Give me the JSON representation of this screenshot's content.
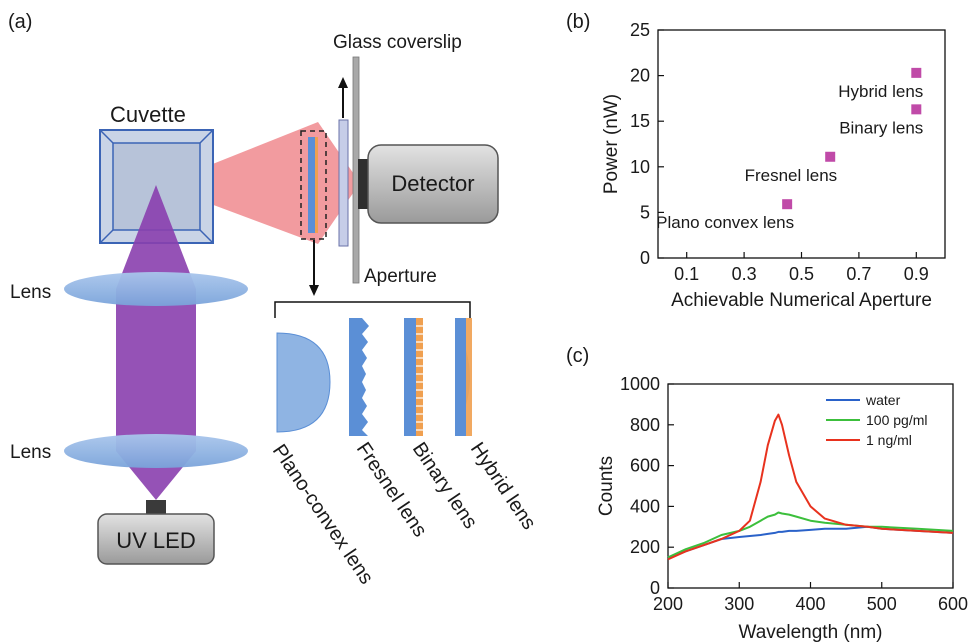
{
  "panels": {
    "a": "(a)",
    "b": "(b)",
    "c": "(c)"
  },
  "diagram": {
    "cuvette": "Cuvette",
    "glass_coverslip": "Glass coverslip",
    "detector": "Detector",
    "aperture": "Aperture",
    "lens_top": "Lens",
    "lens_bottom": "Lens",
    "uv_led": "UV LED",
    "lens_types": [
      "Plano-convex lens",
      "Fresnel lens",
      "Binary lens",
      "Hybrid lens"
    ]
  },
  "colors": {
    "beam_uv": "#8a3fae",
    "beam_red": "#f08a8e",
    "lens_fill": "#8fb4e3",
    "lens_blue": "#5b8fd6",
    "grating_orange": "#f0a050",
    "box_gray": "#b9b9b9",
    "marker_magenta": "#c04aa8"
  },
  "chart_data": [
    {
      "type": "scatter",
      "xlabel": "Achievable Numerical Aperture",
      "ylabel": "Power (nW)",
      "xlim": [
        0,
        1.0
      ],
      "ylim": [
        0,
        25
      ],
      "xticks": [
        "0.1",
        "0.3",
        "0.5",
        "0.7",
        "0.9"
      ],
      "yticks": [
        "0",
        "5",
        "10",
        "15",
        "20",
        "25"
      ],
      "grid": false,
      "points": [
        {
          "x": 0.45,
          "y": 5.9,
          "label": "Plano convex lens"
        },
        {
          "x": 0.6,
          "y": 11.1,
          "label": "Fresnel lens"
        },
        {
          "x": 0.9,
          "y": 16.3,
          "label": "Binary lens"
        },
        {
          "x": 0.9,
          "y": 20.3,
          "label": "Hybrid lens"
        }
      ]
    },
    {
      "type": "line",
      "xlabel": "Wavelength (nm)",
      "ylabel": "Counts",
      "xlim": [
        200,
        600
      ],
      "ylim": [
        0,
        1000
      ],
      "xticks": [
        "200",
        "300",
        "400",
        "500",
        "600"
      ],
      "yticks": [
        "0",
        "200",
        "400",
        "600",
        "800",
        "1000"
      ],
      "grid": false,
      "legend_position": "top-right",
      "x": [
        200,
        225,
        250,
        275,
        300,
        315,
        330,
        340,
        350,
        355,
        360,
        370,
        380,
        400,
        420,
        450,
        480,
        500,
        550,
        600
      ],
      "series": [
        {
          "name": "water",
          "color": "#2a62c9",
          "values": [
            150,
            180,
            210,
            240,
            250,
            255,
            260,
            265,
            270,
            275,
            275,
            280,
            280,
            285,
            290,
            290,
            300,
            290,
            280,
            270
          ]
        },
        {
          "name": "100 pg/ml",
          "color": "#3cbf3c",
          "values": [
            150,
            190,
            220,
            260,
            280,
            300,
            330,
            350,
            360,
            370,
            365,
            360,
            350,
            330,
            320,
            310,
            300,
            300,
            290,
            280
          ]
        },
        {
          "name": "1 ng/ml",
          "color": "#e8321e",
          "values": [
            140,
            180,
            210,
            240,
            280,
            330,
            520,
            700,
            820,
            850,
            800,
            650,
            520,
            400,
            340,
            310,
            300,
            290,
            280,
            270
          ]
        }
      ]
    }
  ]
}
